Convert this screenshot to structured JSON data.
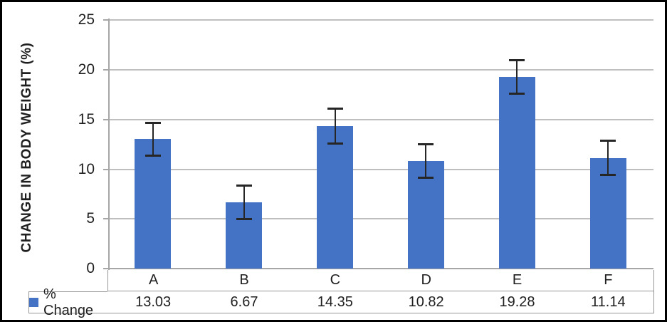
{
  "frame": {
    "background": "#ffffff",
    "border_color": "#000000"
  },
  "chart_data": {
    "type": "bar",
    "title": "",
    "ylabel": "CHANGE IN BODY WEIGHT (%)",
    "xlabel": "",
    "categories": [
      "A",
      "B",
      "C",
      "D",
      "E",
      "F"
    ],
    "series": [
      {
        "name": "% Change",
        "values": [
          13.03,
          6.67,
          14.35,
          10.82,
          19.28,
          11.14
        ],
        "error_bars": [
          1.7,
          1.75,
          1.8,
          1.7,
          1.75,
          1.75
        ],
        "color": "#4472C4"
      }
    ],
    "ylim": [
      0,
      25
    ],
    "yticks": [
      0,
      5,
      10,
      15,
      20,
      25
    ],
    "grid": true,
    "legend_position": "bottom-data-table",
    "data_table": true
  },
  "colors": {
    "bar": "#4472C4",
    "gridline": "#BFBFBF",
    "axis": "#A6A6A6",
    "table_border": "#969696",
    "text": "#1F1F1F",
    "error_bar": "#262626"
  }
}
